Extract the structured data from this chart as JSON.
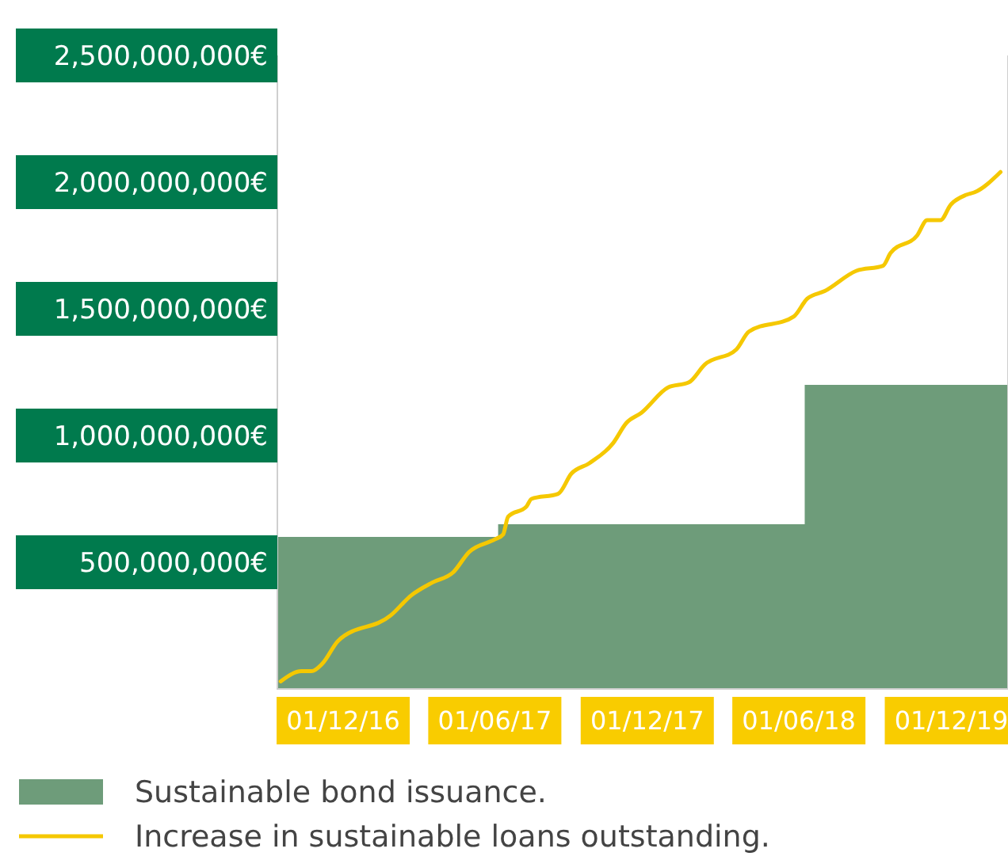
{
  "chart_data": {
    "type": "line",
    "xlim": [
      "2016-09-13",
      "2019-02-07"
    ],
    "ylim": [
      0,
      2500000000
    ],
    "xticks": [
      {
        "value": "2016-12-01",
        "label": "01/12/16"
      },
      {
        "value": "2017-06-01",
        "label": "01/06/17"
      },
      {
        "value": "2017-12-01",
        "label": "01/12/17"
      },
      {
        "value": "2018-06-01",
        "label": "01/06/18"
      },
      {
        "value": "2018-12-01",
        "label": "01/12/19"
      }
    ],
    "yticks": [
      {
        "value": 500000000,
        "label": "500,000,000€"
      },
      {
        "value": 1000000000,
        "label": "1,000,000,000€"
      },
      {
        "value": 1500000000,
        "label": "1,500,000,000€"
      },
      {
        "value": 2000000000,
        "label": "2,000,000,000€"
      },
      {
        "value": 2500000000,
        "label": "2,500,000,000€"
      }
    ],
    "legend": "bottom",
    "grid": false,
    "series": [
      {
        "name": "Sustainable bond issuance.",
        "type": "area",
        "color": "#6e9c7a",
        "x": [
          "2016-09-13",
          "2017-06-05",
          "2017-06-05",
          "2018-06-08",
          "2018-06-08",
          "2019-02-07"
        ],
        "values": [
          600000000,
          600000000,
          650000000,
          650000000,
          1200000000,
          1200000000
        ]
      },
      {
        "name": "Increase in sustainable loans outstanding.",
        "color": "#f5c800",
        "x": [
          "2016-09-17",
          "2016-10-12",
          "2016-10-24",
          "2016-11-06",
          "2016-11-25",
          "2017-01-27",
          "2017-02-21",
          "2017-03-18",
          "2017-04-12",
          "2017-05-01",
          "2017-06-01",
          "2017-06-11",
          "2017-06-17",
          "2017-07-09",
          "2017-07-15",
          "2017-08-16",
          "2017-09-01",
          "2017-09-22",
          "2017-10-21",
          "2017-11-06",
          "2017-11-24",
          "2017-12-26",
          "2018-01-20",
          "2018-02-08",
          "2018-03-18",
          "2018-04-02",
          "2018-05-26",
          "2018-06-11",
          "2018-07-02",
          "2018-08-09",
          "2018-09-10",
          "2018-09-19",
          "2018-10-21",
          "2018-11-02",
          "2018-11-18",
          "2018-11-30",
          "2018-12-19",
          "2018-12-29",
          "2019-01-29"
        ],
        "values": [
          30000000,
          70000000,
          70000000,
          100000000,
          190000000,
          290000000,
          370000000,
          420000000,
          460000000,
          540000000,
          590000000,
          610000000,
          680000000,
          720000000,
          750000000,
          770000000,
          850000000,
          890000000,
          970000000,
          1050000000,
          1090000000,
          1190000000,
          1210000000,
          1280000000,
          1340000000,
          1410000000,
          1470000000,
          1540000000,
          1570000000,
          1650000000,
          1670000000,
          1720000000,
          1790000000,
          1850000000,
          1850000000,
          1910000000,
          1950000000,
          1960000000,
          2040000000
        ]
      }
    ]
  }
}
